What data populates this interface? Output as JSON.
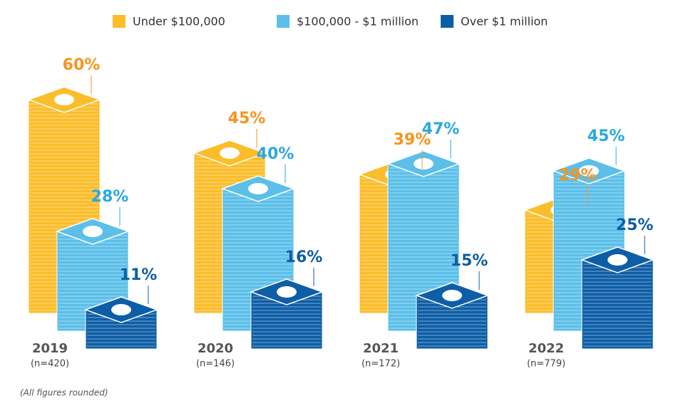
{
  "chart_data": {
    "type": "bar",
    "categories": [
      "2019",
      "2020",
      "2021",
      "2022"
    ],
    "sample_sizes": [
      "(n=420)",
      "(n=146)",
      "(n=172)",
      "(n=779)"
    ],
    "series": [
      {
        "name": "Under $100,000",
        "color": "#fbbd2a",
        "label_color": "#f7941d",
        "values": [
          60,
          45,
          39,
          29
        ],
        "value_labels": [
          "60%",
          "45%",
          "39%",
          "29%"
        ]
      },
      {
        "name": "$100,000 - $1 million",
        "color": "#5bbfe9",
        "label_color": "#29a8e0",
        "values": [
          28,
          40,
          47,
          45
        ],
        "value_labels": [
          "28%",
          "40%",
          "47%",
          "45%"
        ]
      },
      {
        "name": "Over $1 million",
        "color": "#0d5ea6",
        "label_color": "#0d5ea6",
        "values": [
          11,
          16,
          15,
          25
        ],
        "value_labels": [
          "11%",
          "16%",
          "15%",
          "25%"
        ]
      }
    ],
    "note": "(All figures rounded)"
  }
}
